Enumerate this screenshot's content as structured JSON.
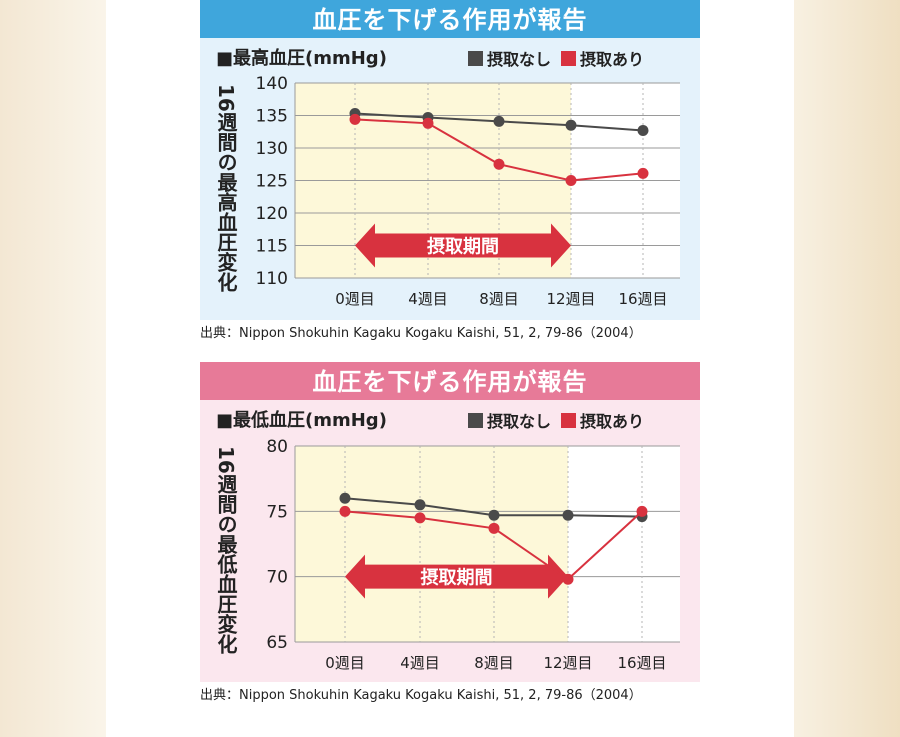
{
  "charts": [
    {
      "banner": "血圧を下げる作用が報告",
      "title": "■最高血圧(mmHg)",
      "ylabel": "16週間の最高血圧変化",
      "period_label": "摂取期間",
      "source": "出典：Nippon Shokuhin Kagaku Kogaku Kaishi, 51, 2, 79-86（2004）",
      "legend": [
        {
          "label": "摂取なし",
          "color": "#4a4a4a"
        },
        {
          "label": "摂取あり",
          "color": "#d8323f"
        }
      ]
    },
    {
      "banner": "血圧を下げる作用が報告",
      "title": "■最低血圧(mmHg)",
      "ylabel": "16週間の最低血圧変化",
      "period_label": "摂取期間",
      "source": "出典：Nippon Shokuhin Kagaku Kogaku Kaishi, 51, 2, 79-86（2004）",
      "legend": [
        {
          "label": "摂取なし",
          "color": "#4a4a4a"
        },
        {
          "label": "摂取あり",
          "color": "#d8323f"
        }
      ]
    }
  ],
  "chart_data": [
    {
      "type": "line",
      "title": "■最高血圧(mmHg)",
      "ylabel": "16週間の最高血圧変化",
      "categories": [
        "0週目",
        "4週目",
        "8週目",
        "12週目",
        "16週目"
      ],
      "ylim": [
        110,
        140
      ],
      "yticks": [
        110,
        115,
        120,
        125,
        130,
        135,
        140
      ],
      "grid": true,
      "legend_position": "top-right",
      "highlight": {
        "from": "0週目",
        "to": "12週目",
        "label": "摂取期間"
      },
      "series": [
        {
          "name": "摂取なし",
          "color": "#4a4a4a",
          "values": [
            135.3,
            134.7,
            134.1,
            133.5,
            132.7
          ]
        },
        {
          "name": "摂取あり",
          "color": "#d8323f",
          "values": [
            134.4,
            133.8,
            127.5,
            125.0,
            126.1
          ]
        }
      ]
    },
    {
      "type": "line",
      "title": "■最低血圧(mmHg)",
      "ylabel": "16週間の最低血圧変化",
      "categories": [
        "0週目",
        "4週目",
        "8週目",
        "12週目",
        "16週目"
      ],
      "ylim": [
        65,
        80
      ],
      "yticks": [
        65,
        70,
        75,
        80
      ],
      "grid": true,
      "legend_position": "top-right",
      "highlight": {
        "from": "0週目",
        "to": "12週目",
        "label": "摂取期間"
      },
      "series": [
        {
          "name": "摂取なし",
          "color": "#4a4a4a",
          "values": [
            76.0,
            75.5,
            74.7,
            74.7,
            74.6
          ]
        },
        {
          "name": "摂取あり",
          "color": "#d8323f",
          "values": [
            75.0,
            74.5,
            73.7,
            69.8,
            75.0
          ]
        }
      ]
    }
  ]
}
